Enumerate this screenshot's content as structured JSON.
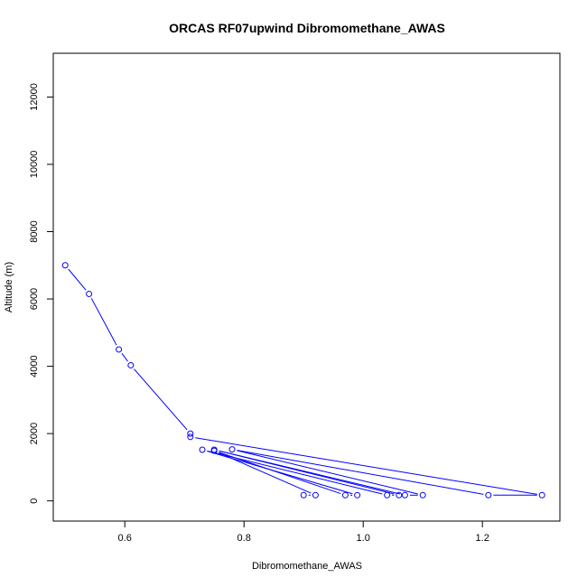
{
  "chart_data": {
    "type": "line",
    "title": "ORCAS RF07upwind Dibromomethane_AWAS",
    "xlabel": "Dibromomethane_AWAS",
    "ylabel": "Altitude (m)",
    "xlim": [
      0.48,
      1.33
    ],
    "ylim": [
      -600,
      13300
    ],
    "x_ticks": [
      0.6,
      0.8,
      1.0,
      1.2
    ],
    "x_tick_labels": [
      "0.6",
      "0.8",
      "1.0",
      "1.2"
    ],
    "y_ticks": [
      0,
      2000,
      4000,
      6000,
      8000,
      10000,
      12000
    ],
    "y_tick_labels": [
      "0",
      "2000",
      "4000",
      "6000",
      "8000",
      "10000",
      "12000"
    ],
    "grid": false,
    "color": "#0000ff",
    "marker": "open-circle",
    "series": [
      {
        "points": [
          {
            "x": 0.5,
            "y": 7000
          },
          {
            "x": 0.54,
            "y": 6150
          },
          {
            "x": 0.59,
            "y": 4500
          },
          {
            "x": 0.61,
            "y": 4030
          },
          {
            "x": 0.71,
            "y": 2000
          },
          {
            "x": 0.71,
            "y": 1900
          },
          {
            "x": 1.3,
            "y": 170
          },
          {
            "x": 1.21,
            "y": 170
          },
          {
            "x": 0.78,
            "y": 1530
          },
          {
            "x": 1.1,
            "y": 170
          },
          {
            "x": 1.07,
            "y": 170
          },
          {
            "x": 0.75,
            "y": 1520
          },
          {
            "x": 1.06,
            "y": 170
          },
          {
            "x": 1.04,
            "y": 170
          },
          {
            "x": 0.73,
            "y": 1520
          },
          {
            "x": 0.99,
            "y": 170
          },
          {
            "x": 0.97,
            "y": 170
          },
          {
            "x": 0.75,
            "y": 1490
          },
          {
            "x": 0.92,
            "y": 170
          },
          {
            "x": 0.9,
            "y": 170
          }
        ]
      }
    ]
  }
}
